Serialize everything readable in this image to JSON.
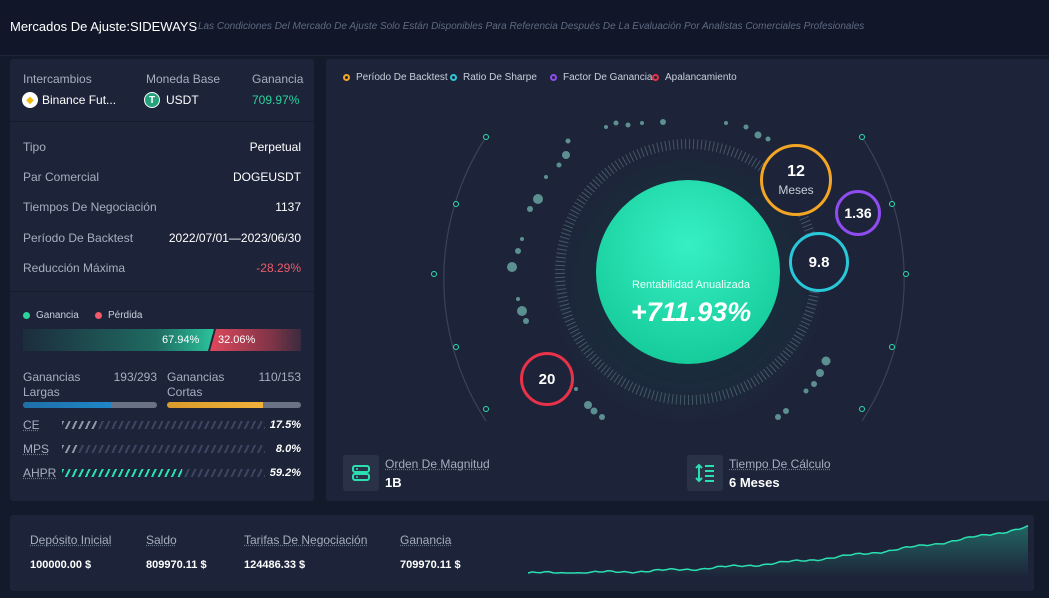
{
  "header": {
    "title": "Mercados De Ajuste:SIDEWAYS",
    "note": "Las Condiciones Del Mercado De Ajuste Solo Están Disponibles Para Referencia Después De La Evaluación Por Analistas Comerciales Profesionales"
  },
  "summary": {
    "exchange_label": "Intercambios",
    "exchange_value": "Binance Fut...",
    "base_label": "Moneda Base",
    "base_value": "USDT",
    "profit_label": "Ganancia",
    "profit_value": "709.97%"
  },
  "details": [
    {
      "label": "Tipo",
      "value": "Perpetual"
    },
    {
      "label": "Par Comercial",
      "value": "DOGEUSDT"
    },
    {
      "label": "Tiempos De Negociación",
      "value": "1137"
    },
    {
      "label": "Período De Backtest",
      "value": "2022/07/01—2023/06/30"
    },
    {
      "label": "Reducción Máxima",
      "value": "-28.29%"
    }
  ],
  "winloss": {
    "gain_label": "Ganancia",
    "loss_label": "Pérdida",
    "gain_value": "67.94%",
    "loss_value": "32.06%",
    "gain_fraction": 0.6794
  },
  "trades": {
    "long_label": "Ganancias Largas",
    "long_value": "193/293",
    "long_fraction": 0.6587,
    "short_label": "Ganancias Cortas",
    "short_value": "110/153",
    "short_fraction": 0.719
  },
  "metrics": [
    {
      "name": "CE",
      "value": "17.5%",
      "fraction": 0.175,
      "color": "#8e96a8"
    },
    {
      "name": "MPS",
      "value": "8.0%",
      "fraction": 0.08,
      "color": "#8e96a8"
    },
    {
      "name": "AHPR",
      "value": "59.2%",
      "fraction": 0.592,
      "color": "#2be0b0"
    }
  ],
  "legend": [
    {
      "label": "Período De Backtest",
      "color": "#f3a623"
    },
    {
      "label": "Ratio De Sharpe",
      "color": "#29c8d8"
    },
    {
      "label": "Factor De Ganancia",
      "color": "#8f4cf0"
    },
    {
      "label": "Apalancamiento",
      "color": "#e8324a"
    }
  ],
  "center": {
    "label": "Rentabilidad Anualizada",
    "value": "+711.93%"
  },
  "bubbles": {
    "period_value": "12",
    "period_unit": "Meses",
    "profit_factor": "1.36",
    "sharpe": "9.8",
    "leverage": "20"
  },
  "footer": {
    "order_label": "Orden De Magnitud",
    "order_value": "1B",
    "time_label": "Tiempo De Cálculo",
    "time_value": "6 Meses"
  },
  "bottom": [
    {
      "label": "Depósito Inicial",
      "value": "100000.00 $"
    },
    {
      "label": "Saldo",
      "value": "809970.11 $"
    },
    {
      "label": "Tarifas De Negociación",
      "value": "124486.33 $"
    },
    {
      "label": "Ganancia",
      "value": "709970.11 $"
    }
  ],
  "colors": {
    "accent": "#2be0b0",
    "gain": "#2bd49b",
    "loss": "#f05a6a",
    "long_bar": "#1f86c7",
    "short_bar": "#f0b23a"
  }
}
